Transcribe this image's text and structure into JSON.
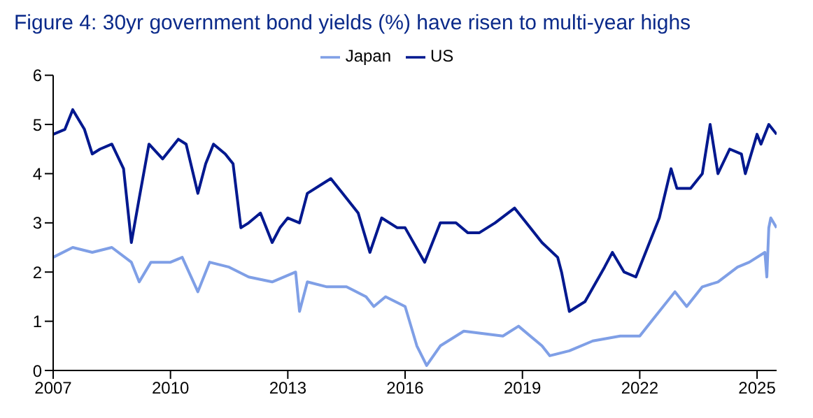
{
  "chart_data": {
    "type": "line",
    "title": "Figure 4: 30yr government bond yields (%) have risen to multi-year highs",
    "xlim": [
      2007,
      2025.5
    ],
    "xticks": [
      2007,
      2010,
      2013,
      2016,
      2019,
      2022,
      2025
    ],
    "ylim": [
      0,
      6
    ],
    "yticks": [
      0,
      1,
      2,
      3,
      4,
      5,
      6
    ],
    "grid": false,
    "legend": "top",
    "marker": "none",
    "line_style": "solid",
    "series": [
      {
        "name": "US",
        "color": "#00188f",
        "x": [
          2007,
          2007.3,
          2007.5,
          2007.8,
          2008,
          2008.2,
          2008.5,
          2008.8,
          2009,
          2009.2,
          2009.45,
          2009.8,
          2010.2,
          2010.4,
          2010.7,
          2010.9,
          2011.1,
          2011.4,
          2011.6,
          2011.8,
          2012,
          2012.3,
          2012.6,
          2012.8,
          2013,
          2013.3,
          2013.5,
          2013.9,
          2014.1,
          2014.4,
          2014.8,
          2015.1,
          2015.4,
          2015.8,
          2016,
          2016.5,
          2016.9,
          2017.3,
          2017.6,
          2017.9,
          2018.3,
          2018.8,
          2019.1,
          2019.5,
          2019.9,
          2020,
          2020.2,
          2020.6,
          2021.1,
          2021.3,
          2021.6,
          2021.9,
          2022.2,
          2022.5,
          2022.8,
          2022.95,
          2023.3,
          2023.6,
          2023.8,
          2024,
          2024.3,
          2024.6,
          2024.7,
          2025,
          2025.1,
          2025.3,
          2025.5
        ],
        "values": [
          4.8,
          4.9,
          5.3,
          4.9,
          4.4,
          4.5,
          4.6,
          4.1,
          2.6,
          3.5,
          4.6,
          4.3,
          4.7,
          4.6,
          3.6,
          4.2,
          4.6,
          4.4,
          4.2,
          2.9,
          3,
          3.2,
          2.6,
          2.9,
          3.1,
          3,
          3.6,
          3.8,
          3.9,
          3.6,
          3.2,
          2.4,
          3.1,
          2.9,
          2.9,
          2.2,
          3,
          3,
          2.8,
          2.8,
          3,
          3.3,
          3,
          2.6,
          2.3,
          2,
          1.2,
          1.4,
          2.1,
          2.4,
          2,
          1.9,
          2.5,
          3.1,
          4.1,
          3.7,
          3.7,
          4,
          5,
          4,
          4.5,
          4.4,
          4,
          4.8,
          4.6,
          5,
          4.8
        ]
      },
      {
        "name": "Japan",
        "color": "#7f9fe6",
        "x": [
          2007,
          2007.5,
          2008,
          2008.5,
          2009,
          2009.2,
          2009.5,
          2010,
          2010.3,
          2010.7,
          2011,
          2011.5,
          2012,
          2012.6,
          2013.2,
          2013.3,
          2013.5,
          2014,
          2014.5,
          2015,
          2015.2,
          2015.5,
          2016,
          2016.3,
          2016.55,
          2016.9,
          2017.5,
          2018.5,
          2018.9,
          2019.5,
          2019.7,
          2020.2,
          2020.8,
          2021.5,
          2022,
          2022.3,
          2022.9,
          2023.2,
          2023.6,
          2024,
          2024.5,
          2024.8,
          2025.2,
          2025.25,
          2025.3,
          2025.35,
          2025.5
        ],
        "values": [
          2.3,
          2.5,
          2.4,
          2.5,
          2.2,
          1.8,
          2.2,
          2.2,
          2.3,
          1.6,
          2.2,
          2.1,
          1.9,
          1.8,
          2,
          1.2,
          1.8,
          1.7,
          1.7,
          1.5,
          1.3,
          1.5,
          1.3,
          0.5,
          0.1,
          0.5,
          0.8,
          0.7,
          0.9,
          0.5,
          0.3,
          0.4,
          0.6,
          0.7,
          0.7,
          1,
          1.6,
          1.3,
          1.7,
          1.8,
          2.1,
          2.2,
          2.4,
          1.9,
          2.9,
          3.1,
          2.9
        ]
      }
    ]
  }
}
